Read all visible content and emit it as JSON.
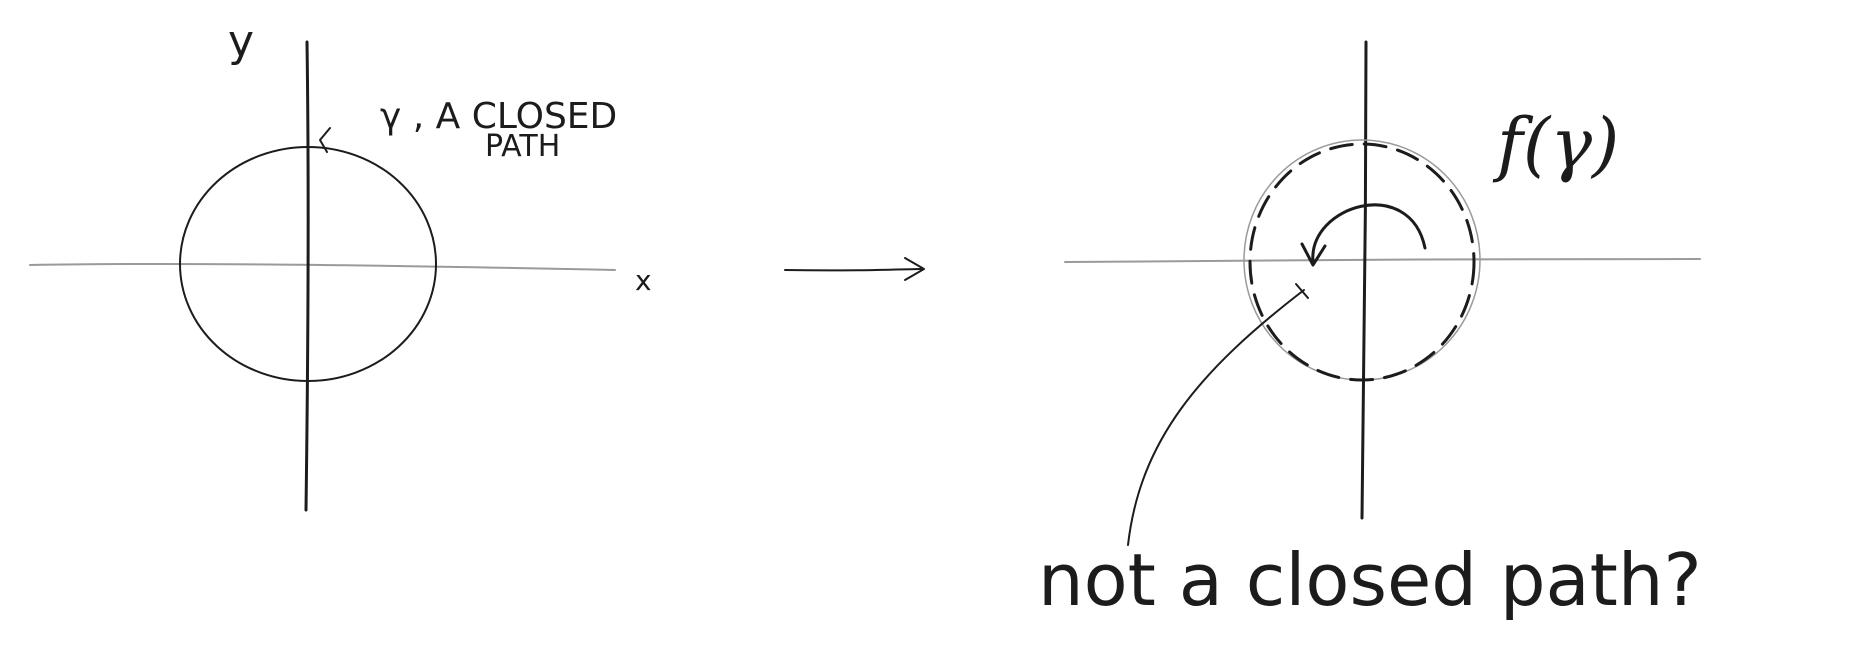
{
  "left_panel": {
    "y_axis_label": "y",
    "x_axis_label": "x",
    "gamma_label": "γ , A CLOSED",
    "gamma_label_line2": "PATH"
  },
  "right_panel": {
    "image_label": "f(γ)",
    "note": "not a closed path?"
  },
  "colors": {
    "ink": "#1c1c1c",
    "pencil": "#9a9a9a",
    "background": "#ffffff"
  }
}
